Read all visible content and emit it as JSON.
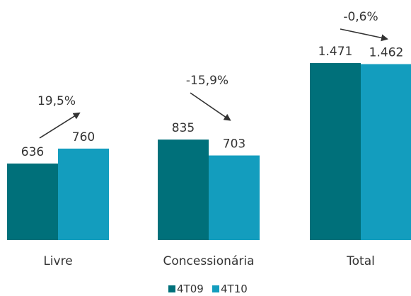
{
  "chart_data": {
    "type": "bar",
    "categories": [
      "Livre",
      "Concessionária",
      "Total"
    ],
    "series": [
      {
        "name": "4T09",
        "values": [
          636,
          835,
          1471
        ],
        "labels": [
          "636",
          "835",
          "1.471"
        ],
        "color": "#00707A"
      },
      {
        "name": "4T10",
        "values": [
          760,
          703,
          1462
        ],
        "labels": [
          "760",
          "703",
          "1.462"
        ],
        "color": "#139DBE"
      }
    ],
    "changes": [
      "19,5%",
      "-15,9%",
      "-0,6%"
    ],
    "ylim": [
      0,
      1530
    ],
    "grid": false,
    "legend_position": "bottom-center",
    "title": "",
    "xlabel": "",
    "ylabel": ""
  }
}
